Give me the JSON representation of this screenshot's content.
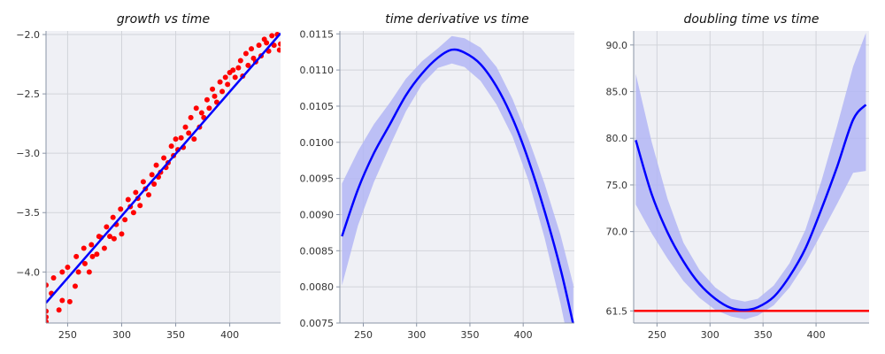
{
  "chart_data": [
    {
      "type": "scatter",
      "title": "growth vs time",
      "xlabel": "",
      "ylabel": "",
      "xlim": [
        230,
        447
      ],
      "ylim": [
        -4.43,
        -1.97
      ],
      "xticks": [
        250,
        300,
        350,
        400
      ],
      "yticks": [
        -4.0,
        -3.5,
        -3.0,
        -2.5,
        -2.0
      ],
      "xtick_labels": [
        "250",
        "300",
        "350",
        "400"
      ],
      "ytick_labels": [
        "−4.0",
        "−3.5",
        "−3.0",
        "−2.5",
        "−2.0"
      ],
      "grid": true,
      "points_color": "#ff0000",
      "line_color": "#0000ff",
      "points": {
        "x": [
          230,
          230,
          230,
          230,
          235,
          237,
          242,
          245,
          245,
          250,
          252,
          257,
          258,
          260,
          265,
          266,
          270,
          272,
          273,
          277,
          279,
          281,
          284,
          286,
          289,
          292,
          293,
          295,
          299,
          300,
          303,
          306,
          308,
          311,
          313,
          315,
          317,
          320,
          322,
          325,
          328,
          330,
          332,
          334,
          336,
          339,
          341,
          343,
          346,
          348,
          350,
          352,
          355,
          357,
          359,
          362,
          364,
          367,
          369,
          372,
          374,
          376,
          379,
          381,
          384,
          386,
          388,
          391,
          393,
          396,
          398,
          400,
          403,
          405,
          408,
          410,
          412,
          415,
          417,
          420,
          422,
          424,
          427,
          429,
          432,
          434,
          436,
          439,
          441,
          444,
          446,
          447
        ],
        "y": [
          -4.11,
          -4.33,
          -4.38,
          -4.42,
          -4.18,
          -4.05,
          -4.32,
          -4.0,
          -4.24,
          -3.96,
          -4.25,
          -4.12,
          -3.87,
          -4.0,
          -3.8,
          -3.93,
          -4.0,
          -3.77,
          -3.87,
          -3.85,
          -3.7,
          -3.71,
          -3.8,
          -3.62,
          -3.7,
          -3.54,
          -3.72,
          -3.6,
          -3.47,
          -3.68,
          -3.56,
          -3.39,
          -3.45,
          -3.5,
          -3.33,
          -3.38,
          -3.44,
          -3.24,
          -3.3,
          -3.35,
          -3.18,
          -3.26,
          -3.1,
          -3.2,
          -3.16,
          -3.04,
          -3.12,
          -3.08,
          -2.94,
          -3.02,
          -2.88,
          -2.97,
          -2.87,
          -2.95,
          -2.78,
          -2.83,
          -2.7,
          -2.88,
          -2.62,
          -2.78,
          -2.66,
          -2.7,
          -2.55,
          -2.62,
          -2.46,
          -2.52,
          -2.57,
          -2.4,
          -2.48,
          -2.36,
          -2.42,
          -2.32,
          -2.3,
          -2.36,
          -2.28,
          -2.22,
          -2.35,
          -2.16,
          -2.26,
          -2.12,
          -2.2,
          -2.23,
          -2.09,
          -2.18,
          -2.04,
          -2.07,
          -2.14,
          -2.01,
          -2.09,
          -2.0,
          -2.13,
          -2.08
        ]
      },
      "fit_line": {
        "x": [
          230,
          447
        ],
        "y": [
          -4.26,
          -1.99
        ]
      }
    },
    {
      "type": "line",
      "title": "time derivative vs time",
      "xlabel": "",
      "ylabel": "",
      "xlim": [
        228,
        448
      ],
      "ylim": [
        0.0075,
        0.01154
      ],
      "xticks": [
        250,
        300,
        350,
        400
      ],
      "yticks": [
        0.0075,
        0.008,
        0.0085,
        0.009,
        0.0095,
        0.01,
        0.0105,
        0.011,
        0.0115
      ],
      "xtick_labels": [
        "250",
        "300",
        "350",
        "400"
      ],
      "ytick_labels": [
        "0.0075",
        "0.0080",
        "0.0085",
        "0.0090",
        "0.0095",
        "0.0100",
        "0.0105",
        "0.0110",
        "0.0115"
      ],
      "grid": true,
      "line_color": "#0000ff",
      "band_color": "#b3b6f5",
      "series": [
        {
          "x": [
            230,
            245,
            260,
            275,
            290,
            305,
            320,
            333,
            345,
            360,
            375,
            390,
            405,
            420,
            435,
            447
          ],
          "y": [
            0.0087,
            0.00935,
            0.00985,
            0.01025,
            0.01065,
            0.01095,
            0.01117,
            0.01128,
            0.01124,
            0.01108,
            0.01077,
            0.01033,
            0.00975,
            0.00905,
            0.00825,
            0.00748
          ],
          "lower": [
            0.00802,
            0.00885,
            0.00945,
            0.00995,
            0.01043,
            0.0108,
            0.01103,
            0.01109,
            0.01104,
            0.01085,
            0.01052,
            0.01008,
            0.00947,
            0.00868,
            0.00777,
            0.00692
          ],
          "upper": [
            0.00943,
            0.00988,
            0.01025,
            0.01055,
            0.01088,
            0.01112,
            0.0113,
            0.01147,
            0.01144,
            0.01131,
            0.01104,
            0.0106,
            0.01005,
            0.00943,
            0.00872,
            0.00803
          ]
        }
      ]
    },
    {
      "type": "line",
      "title": "doubling time vs time",
      "xlabel": "",
      "ylabel": "",
      "xlim": [
        228,
        450
      ],
      "ylim": [
        60.2,
        91.5
      ],
      "xticks": [
        250,
        300,
        350,
        400
      ],
      "yticks": [
        61.5,
        70.0,
        75.0,
        80.0,
        85.0,
        90.0
      ],
      "xtick_labels": [
        "250",
        "300",
        "350",
        "400"
      ],
      "ytick_labels": [
        "61.5",
        "70.0",
        "75.0",
        "80.0",
        "85.0",
        "90.0"
      ],
      "grid": true,
      "line_color": "#0000ff",
      "band_color": "#b3b6f5",
      "hline": {
        "y": 61.5,
        "color": "#ff0000"
      },
      "series": [
        {
          "x": [
            230,
            245,
            260,
            275,
            290,
            305,
            320,
            333,
            345,
            360,
            375,
            390,
            405,
            420,
            435,
            447
          ],
          "y": [
            79.8,
            74.0,
            69.9,
            66.8,
            64.4,
            62.8,
            61.8,
            61.6,
            61.9,
            63.0,
            65.2,
            68.2,
            72.4,
            77.0,
            82.0,
            83.6
          ],
          "lower": [
            72.9,
            69.8,
            67.1,
            64.7,
            62.9,
            61.6,
            60.9,
            60.6,
            61.0,
            62.1,
            64.0,
            66.6,
            69.8,
            73.0,
            76.3,
            76.5
          ],
          "upper": [
            86.9,
            79.6,
            73.5,
            68.8,
            65.9,
            64.0,
            62.8,
            62.5,
            62.8,
            64.2,
            66.6,
            70.2,
            75.4,
            81.4,
            87.7,
            91.3
          ]
        }
      ]
    }
  ]
}
